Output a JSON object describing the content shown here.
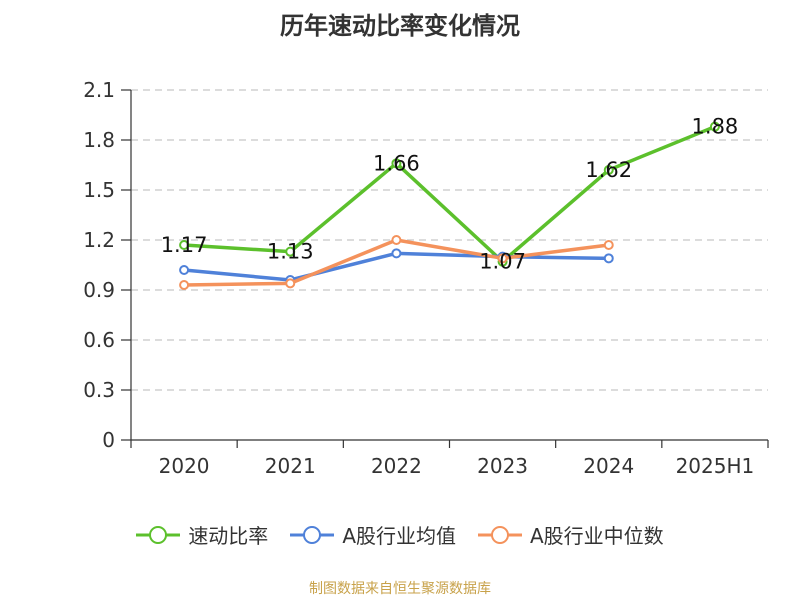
{
  "chart_data": {
    "type": "line",
    "title": "历年速动比率变化情况",
    "categories": [
      "2020",
      "2021",
      "2022",
      "2023",
      "2024",
      "2025H1"
    ],
    "ylim": [
      0,
      2.1
    ],
    "yticks": [
      0,
      0.3,
      0.6,
      0.9,
      1.2,
      1.5,
      1.8,
      2.1
    ],
    "ytick_labels": [
      "0",
      "0.3",
      "0.6",
      "0.9",
      "1.2",
      "1.5",
      "1.8",
      "2.1"
    ],
    "grid": true,
    "legend_position": "bottom",
    "series": [
      {
        "name": "速动比率",
        "color": "#5cc02c",
        "values": [
          1.17,
          1.13,
          1.66,
          1.07,
          1.62,
          1.88
        ],
        "labels": [
          "1.17",
          "1.13",
          "1.66",
          "1.07",
          "1.62",
          "1.88"
        ]
      },
      {
        "name": "A股行业均值",
        "color": "#4f81d9",
        "values": [
          1.02,
          0.96,
          1.12,
          1.1,
          1.09,
          null
        ]
      },
      {
        "name": "A股行业中位数",
        "color": "#f4925c",
        "values": [
          0.93,
          0.94,
          1.2,
          1.09,
          1.17,
          null
        ]
      }
    ]
  },
  "source_note": "制图数据来自恒生聚源数据库"
}
